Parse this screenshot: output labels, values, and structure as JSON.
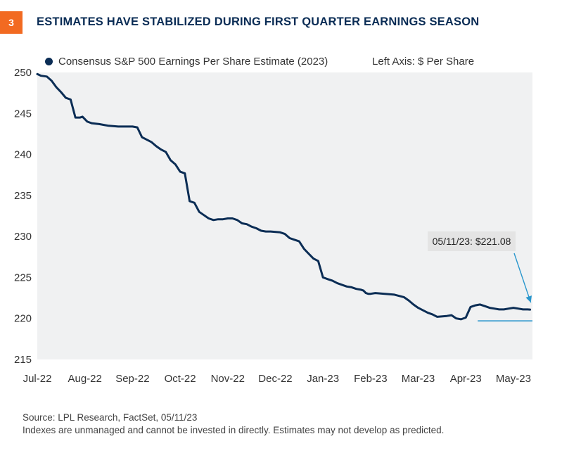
{
  "figure": {
    "number": "3",
    "title": "ESTIMATES HAVE STABILIZED DURING FIRST QUARTER EARNINGS SEASON"
  },
  "legend": {
    "series_label": "Consensus S&P 500 Earnings Per Share Estimate (2023)",
    "axis_note": "Left Axis: $ Per Share"
  },
  "annotation": {
    "text": "05/11/23: $221.08"
  },
  "footer": {
    "source": "Source: LPL Research, FactSet,  05/11/23",
    "disclaimer": "Indexes are unmanaged and cannot be invested in directly. Estimates may not develop as predicted."
  },
  "colors": {
    "line": "#0b2d55",
    "plot_bg": "#f0f1f2",
    "accent": "#2a97cd",
    "badge": "#f26a21",
    "callout_bg": "#e4e4e4"
  },
  "chart_data": {
    "type": "line",
    "title": "ESTIMATES HAVE STABILIZED DURING FIRST QUARTER EARNINGS SEASON",
    "xlabel": "",
    "ylabel": "$ Per Share",
    "ylim": [
      215,
      250
    ],
    "yticks": [
      250,
      245,
      240,
      235,
      230,
      225,
      220,
      215
    ],
    "xlim": [
      0,
      10.4
    ],
    "x_tick_labels": [
      "Jul-22",
      "Aug-22",
      "Sep-22",
      "Oct-22",
      "Nov-22",
      "Dec-22",
      "Jan-23",
      "Feb-23",
      "Mar-23",
      "Apr-23",
      "May-23"
    ],
    "grid": false,
    "legend_position": "top-left",
    "series": [
      {
        "name": "Consensus S&P 500 Earnings Per Share Estimate (2023)",
        "x": [
          0,
          0.08,
          0.2,
          0.3,
          0.4,
          0.5,
          0.6,
          0.7,
          0.8,
          0.9,
          0.95,
          1.05,
          1.15,
          1.3,
          1.4,
          1.5,
          1.7,
          2.0,
          2.1,
          2.2,
          2.3,
          2.4,
          2.5,
          2.6,
          2.7,
          2.8,
          2.9,
          3.0,
          3.1,
          3.2,
          3.3,
          3.4,
          3.5,
          3.6,
          3.7,
          3.8,
          3.9,
          4.0,
          4.1,
          4.2,
          4.3,
          4.4,
          4.5,
          4.6,
          4.7,
          4.8,
          4.9,
          5.1,
          5.2,
          5.3,
          5.4,
          5.5,
          5.6,
          5.7,
          5.8,
          5.9,
          6.0,
          6.1,
          6.2,
          6.3,
          6.4,
          6.5,
          6.6,
          6.7,
          6.8,
          6.85,
          6.9,
          6.95,
          7.0,
          7.1,
          7.3,
          7.5,
          7.7,
          7.8,
          7.9,
          8.0,
          8.1,
          8.2,
          8.3,
          8.4,
          8.6,
          8.7,
          8.8,
          8.9,
          9.0,
          9.1,
          9.2,
          9.3,
          9.4,
          9.5,
          9.6,
          9.7,
          9.8,
          9.9,
          10.0,
          10.1,
          10.2,
          10.3,
          10.35
        ],
        "values": [
          249.8,
          249.6,
          249.5,
          249.0,
          248.2,
          247.6,
          246.9,
          246.7,
          244.5,
          244.5,
          244.6,
          244.0,
          243.8,
          243.7,
          243.6,
          243.5,
          243.4,
          243.4,
          243.3,
          242.1,
          241.8,
          241.5,
          241.0,
          240.6,
          240.3,
          239.3,
          238.8,
          237.9,
          237.7,
          234.3,
          234.1,
          233.0,
          232.6,
          232.2,
          232.0,
          232.1,
          232.1,
          232.2,
          232.2,
          232.0,
          231.6,
          231.5,
          231.2,
          231.0,
          230.7,
          230.6,
          230.6,
          230.5,
          230.3,
          229.8,
          229.6,
          229.4,
          228.5,
          227.9,
          227.3,
          227.0,
          225.0,
          224.8,
          224.6,
          224.3,
          224.1,
          223.9,
          223.8,
          223.6,
          223.5,
          223.4,
          223.1,
          223.0,
          223.0,
          223.1,
          223.0,
          222.9,
          222.6,
          222.2,
          221.7,
          221.3,
          221.0,
          220.7,
          220.5,
          220.2,
          220.3,
          220.4,
          220.0,
          219.9,
          220.1,
          221.4,
          221.6,
          221.7,
          221.5,
          221.3,
          221.2,
          221.1,
          221.1,
          221.2,
          221.3,
          221.2,
          221.1,
          221.1,
          221.08
        ]
      }
    ],
    "reference_line": {
      "value": 219.7,
      "x_start": 9.25,
      "x_end": 10.4
    },
    "callout": {
      "label": "05/11/23: $221.08",
      "x": 10.35,
      "value": 221.08
    }
  }
}
